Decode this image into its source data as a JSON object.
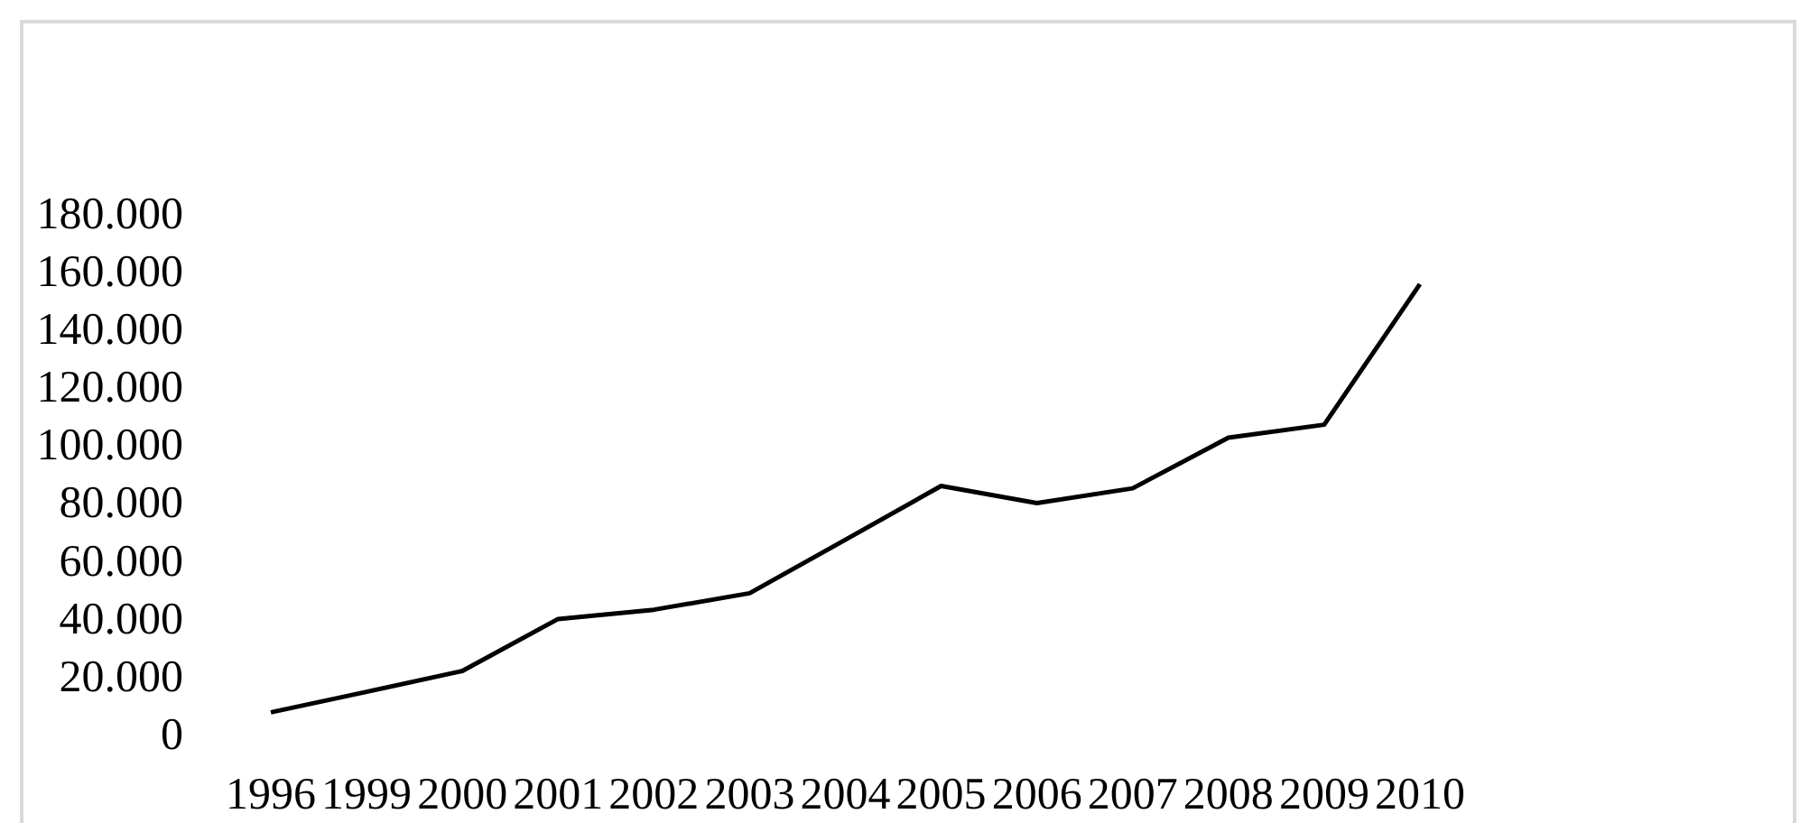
{
  "chart_data": {
    "type": "line",
    "categories": [
      "1996",
      "1999",
      "2000",
      "2001",
      "2002",
      "2003",
      "2004",
      "2005",
      "2006",
      "2007",
      "2008",
      "2009",
      "2010"
    ],
    "series": [
      {
        "color": "#000000",
        "values": [
          8500,
          15600,
          22800,
          40800,
          44000,
          49700,
          68200,
          86800,
          80900,
          86000,
          103500,
          108000,
          156600
        ]
      }
    ],
    "ylim": [
      0,
      180000
    ],
    "yticks": [
      0,
      {
        "value": 20000,
        "label": "20.000"
      },
      {
        "value": 40000,
        "label": "40.000"
      },
      {
        "value": 60000,
        "label": "60.000"
      },
      {
        "value": 80000,
        "label": "80.000"
      },
      {
        "value": 100000,
        "label": "100.000"
      },
      {
        "value": 120000,
        "label": "120.000"
      },
      {
        "value": 140000,
        "label": "140.000"
      },
      {
        "value": 160000,
        "label": "160.000"
      },
      {
        "value": 180000,
        "label": "180.000"
      }
    ],
    "grid": false,
    "legend": false,
    "marker": "none",
    "line_style": "solid"
  }
}
